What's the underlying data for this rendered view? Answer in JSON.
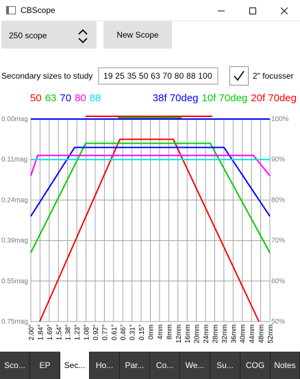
{
  "window": {
    "title": "CBScope",
    "controls": [
      "minimize-icon",
      "maximize-icon",
      "close-icon"
    ]
  },
  "toolbar": {
    "scope_select_value": "250 scope",
    "new_scope_label": "New Scope"
  },
  "secondary": {
    "label": "Secondary sizes to study",
    "value": "19 25 35 50 63 70 80 88 100",
    "focusser_checked": true,
    "focusser_label": "2\" focusser"
  },
  "legend_left": [
    {
      "text": "50",
      "color": "#ff0000"
    },
    {
      "text": "63",
      "color": "#00cc00"
    },
    {
      "text": "70",
      "color": "#0000ff"
    },
    {
      "text": "80",
      "color": "#ff00ff"
    },
    {
      "text": "88",
      "color": "#00e5e5"
    }
  ],
  "legend_right": [
    {
      "text": "38f 70deg",
      "color": "#0000ff"
    },
    {
      "text": "10f 70deg",
      "color": "#00cc00"
    },
    {
      "text": "20f 70deg",
      "color": "#ff0000"
    }
  ],
  "chart_data": {
    "type": "line",
    "y_left_ticks": [
      "0.00mag",
      "0.11mag",
      "0.24mag",
      "0.39mag",
      "0.55mag",
      "0.75mag"
    ],
    "y_right_ticks": [
      "100%",
      "90%",
      "80%",
      "70%",
      "60%",
      "50%"
    ],
    "x_ticks": [
      "2.00°",
      "1.84°",
      "1.69°",
      "1.54°",
      "1.38°",
      "1.23°",
      "1.08°",
      "0.92°",
      "0.77°",
      "0.61°",
      "0.46°",
      "0.31°",
      "0.15°",
      "0mm",
      "4mm",
      "8mm",
      "12mm",
      "16mm",
      "20mm",
      "24mm",
      "28mm",
      "32mm",
      "36mm",
      "40mm",
      "44mm",
      "48mm",
      "52mm"
    ],
    "ylim_percent": [
      50,
      100
    ],
    "series": [
      {
        "name": "50",
        "color": "#ff0000",
        "plateau": 95,
        "plateau_start": 0.46,
        "plateau_end": 8
      },
      {
        "name": "63",
        "color": "#00cc00",
        "plateau": 94,
        "plateau_start": 0.92,
        "plateau_end": 24
      },
      {
        "name": "70",
        "color": "#0000ff",
        "plateau": 93,
        "plateau_start": 1.08,
        "plateau_end": 28
      },
      {
        "name": "80",
        "color": "#ff00ff",
        "plateau": 91,
        "plateau_start": 1.54,
        "plateau_end": 44
      },
      {
        "name": "88",
        "color": "#00e5e5",
        "plateau": 90,
        "plateau_start": 2.0,
        "plateau_end": 52
      }
    ],
    "field_stops": [
      {
        "name": "38f 70deg",
        "color": "#0000ff",
        "level": 100
      },
      {
        "name": "10f 70deg",
        "color": "#00cc00",
        "level": 100
      },
      {
        "name": "20f 70deg",
        "color": "#ff0000",
        "level": 100
      }
    ]
  },
  "tabs": [
    {
      "label": "Sco...",
      "active": false
    },
    {
      "label": "EP",
      "active": false
    },
    {
      "label": "Sec...",
      "active": true
    },
    {
      "label": "Ho...",
      "active": false
    },
    {
      "label": "Par...",
      "active": false
    },
    {
      "label": "Co...",
      "active": false
    },
    {
      "label": "We...",
      "active": false
    },
    {
      "label": "Su...",
      "active": false
    },
    {
      "label": "COG",
      "active": false
    },
    {
      "label": "Notes",
      "active": false
    }
  ]
}
